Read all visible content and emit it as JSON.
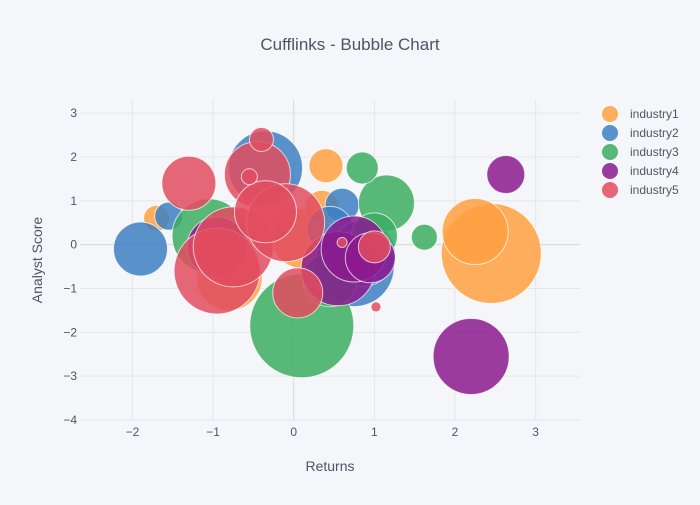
{
  "chart_data": {
    "type": "scatter",
    "title": "Cufflinks - Bubble Chart",
    "xlabel": "Returns",
    "ylabel": "Analyst Score",
    "xlim": [
      -2.65,
      3.55
    ],
    "ylim": [
      -4,
      3.3
    ],
    "xticks": [
      -2,
      -1,
      0,
      1,
      2,
      3
    ],
    "xtick_labels": [
      "−2",
      "−1",
      "0",
      "1",
      "2",
      "3"
    ],
    "yticks": [
      -4,
      -3,
      -2,
      -1,
      0,
      1,
      2,
      3
    ],
    "ytick_labels": [
      "−4",
      "−3",
      "−2",
      "−1",
      "0",
      "1",
      "2",
      "3"
    ],
    "grid": true,
    "legend_position": "right",
    "series": [
      {
        "name": "industry1",
        "color": "#ffa042",
        "points": [
          {
            "x": 2.45,
            "y": -0.2,
            "size": 50
          },
          {
            "x": 2.25,
            "y": 0.3,
            "size": 33
          },
          {
            "x": 0.4,
            "y": 1.8,
            "size": 17
          },
          {
            "x": -1.7,
            "y": 0.6,
            "size": 13
          },
          {
            "x": -0.8,
            "y": -0.75,
            "size": 33
          },
          {
            "x": 0.1,
            "y": 0.15,
            "size": 30
          },
          {
            "x": 0.35,
            "y": 0.85,
            "size": 17
          }
        ]
      },
      {
        "name": "industry2",
        "color": "#3d7fc3",
        "points": [
          {
            "x": -0.35,
            "y": 1.75,
            "size": 37
          },
          {
            "x": -1.9,
            "y": -0.1,
            "size": 27
          },
          {
            "x": 0.75,
            "y": -0.5,
            "size": 40
          },
          {
            "x": 0.6,
            "y": 0.9,
            "size": 17
          },
          {
            "x": 0.45,
            "y": 0.35,
            "size": 23
          },
          {
            "x": -1.55,
            "y": 0.65,
            "size": 14
          },
          {
            "x": 0.85,
            "y": -0.2,
            "size": 33
          }
        ]
      },
      {
        "name": "industry3",
        "color": "#3bad62",
        "points": [
          {
            "x": 0.1,
            "y": -1.85,
            "size": 52
          },
          {
            "x": -1.05,
            "y": 0.2,
            "size": 37
          },
          {
            "x": 1.15,
            "y": 0.95,
            "size": 28
          },
          {
            "x": 0.85,
            "y": 1.75,
            "size": 16
          },
          {
            "x": 1.62,
            "y": 0.17,
            "size": 13
          },
          {
            "x": 0.45,
            "y": -0.8,
            "size": 27
          },
          {
            "x": 1.0,
            "y": 0.2,
            "size": 23
          }
        ]
      },
      {
        "name": "industry4",
        "color": "#8b1a8e",
        "points": [
          {
            "x": 2.2,
            "y": -2.55,
            "size": 38
          },
          {
            "x": 2.63,
            "y": 1.6,
            "size": 19
          },
          {
            "x": 0.55,
            "y": -0.55,
            "size": 37
          },
          {
            "x": 0.75,
            "y": -0.1,
            "size": 33
          },
          {
            "x": -0.95,
            "y": -0.05,
            "size": 30
          },
          {
            "x": 0.95,
            "y": -0.3,
            "size": 25
          }
        ]
      },
      {
        "name": "industry5",
        "color": "#e24c5f",
        "points": [
          {
            "x": -0.95,
            "y": -0.6,
            "size": 43
          },
          {
            "x": -0.45,
            "y": 1.6,
            "size": 33
          },
          {
            "x": -0.75,
            "y": -0.05,
            "size": 40
          },
          {
            "x": -1.3,
            "y": 1.4,
            "size": 27
          },
          {
            "x": -0.1,
            "y": 0.5,
            "size": 39
          },
          {
            "x": 0.05,
            "y": -1.1,
            "size": 25
          },
          {
            "x": -0.4,
            "y": 2.4,
            "size": 12
          },
          {
            "x": -0.35,
            "y": 0.75,
            "size": 31
          },
          {
            "x": 1.0,
            "y": -0.05,
            "size": 16
          },
          {
            "x": 0.6,
            "y": 0.05,
            "size": 5
          },
          {
            "x": 1.02,
            "y": -1.42,
            "size": 5
          },
          {
            "x": -0.55,
            "y": 1.55,
            "size": 8
          }
        ]
      }
    ]
  }
}
